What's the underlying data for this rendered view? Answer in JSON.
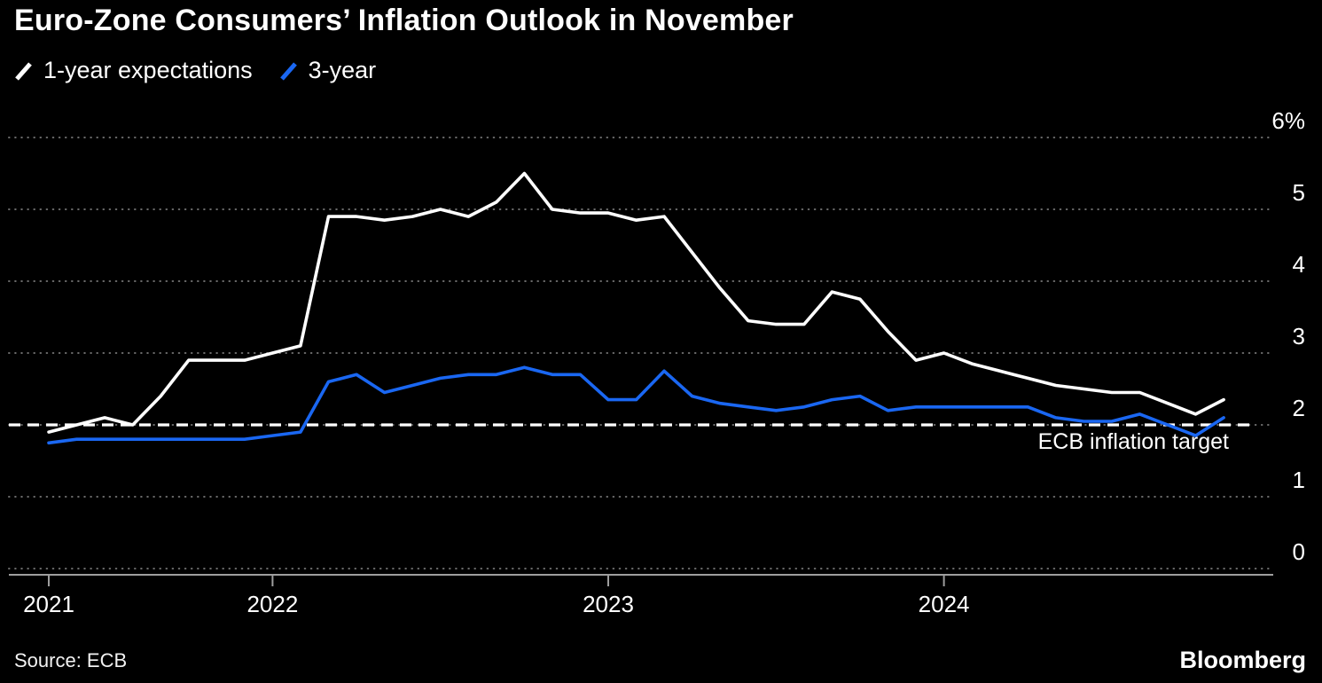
{
  "title": "Euro-Zone Consumers’ Inflation Outlook in November",
  "source": "Source: ECB",
  "brand": "Bloomberg",
  "colors": {
    "background": "#000000",
    "series_1yr": "#ffffff",
    "series_3yr": "#1a67f2",
    "grid": "#6b6b6b",
    "axis": "#9e9e9e"
  },
  "legend": {
    "items": [
      {
        "label": "1-year expectations",
        "color": "#ffffff"
      },
      {
        "label": "3-year",
        "color": "#1a67f2"
      }
    ]
  },
  "chart_data": {
    "type": "line",
    "title": "Euro-Zone Consumers’ Inflation Outlook in November",
    "unit": "%",
    "grid": true,
    "legend_position": "top-left",
    "ylim": [
      0,
      6.6
    ],
    "x": [
      "2021-05",
      "2021-06",
      "2021-07",
      "2021-08",
      "2021-09",
      "2021-10",
      "2021-11",
      "2021-12",
      "2022-01",
      "2022-02",
      "2022-03",
      "2022-04",
      "2022-05",
      "2022-06",
      "2022-07",
      "2022-08",
      "2022-09",
      "2022-10",
      "2022-11",
      "2022-12",
      "2023-01",
      "2023-02",
      "2023-03",
      "2023-04",
      "2023-05",
      "2023-06",
      "2023-07",
      "2023-08",
      "2023-09",
      "2023-10",
      "2023-11",
      "2023-12",
      "2024-01",
      "2024-02",
      "2024-03",
      "2024-04",
      "2024-05",
      "2024-06",
      "2024-07",
      "2024-08",
      "2024-09",
      "2024-10",
      "2024-11"
    ],
    "x_ticks": [
      {
        "label": "2021",
        "month": "2021-05"
      },
      {
        "label": "2022",
        "month": "2022-01"
      },
      {
        "label": "2023",
        "month": "2023-01"
      },
      {
        "label": "2024",
        "month": "2024-01"
      }
    ],
    "y_axis": {
      "ticks": [
        0,
        1,
        2,
        3,
        4,
        5,
        6
      ],
      "labels": [
        "0",
        "1",
        "2",
        "3",
        "4",
        "5",
        "6%"
      ]
    },
    "reference_line": {
      "value": 2,
      "label": "ECB inflation target",
      "style": "dashed",
      "color": "#ffffff"
    },
    "series": [
      {
        "name": "1-year expectations",
        "color": "#ffffff",
        "values": [
          1.9,
          2.0,
          2.1,
          2.0,
          2.4,
          2.9,
          2.9,
          2.9,
          3.0,
          3.1,
          4.9,
          4.9,
          4.85,
          4.9,
          5.0,
          4.9,
          5.1,
          5.5,
          5.0,
          4.95,
          4.95,
          4.85,
          4.9,
          4.4,
          3.9,
          3.45,
          3.4,
          3.4,
          3.85,
          3.75,
          3.3,
          2.9,
          3.0,
          2.85,
          2.75,
          2.65,
          2.55,
          2.5,
          2.45,
          2.45,
          2.3,
          2.15,
          2.35
        ]
      },
      {
        "name": "3-year",
        "color": "#1a67f2",
        "values": [
          1.75,
          1.8,
          1.8,
          1.8,
          1.8,
          1.8,
          1.8,
          1.8,
          1.85,
          1.9,
          2.6,
          2.7,
          2.45,
          2.55,
          2.65,
          2.7,
          2.7,
          2.8,
          2.7,
          2.7,
          2.35,
          2.35,
          2.75,
          2.4,
          2.3,
          2.25,
          2.2,
          2.25,
          2.35,
          2.4,
          2.2,
          2.25,
          2.25,
          2.25,
          2.25,
          2.25,
          2.1,
          2.05,
          2.05,
          2.15,
          2.0,
          1.85,
          2.1
        ]
      }
    ]
  }
}
